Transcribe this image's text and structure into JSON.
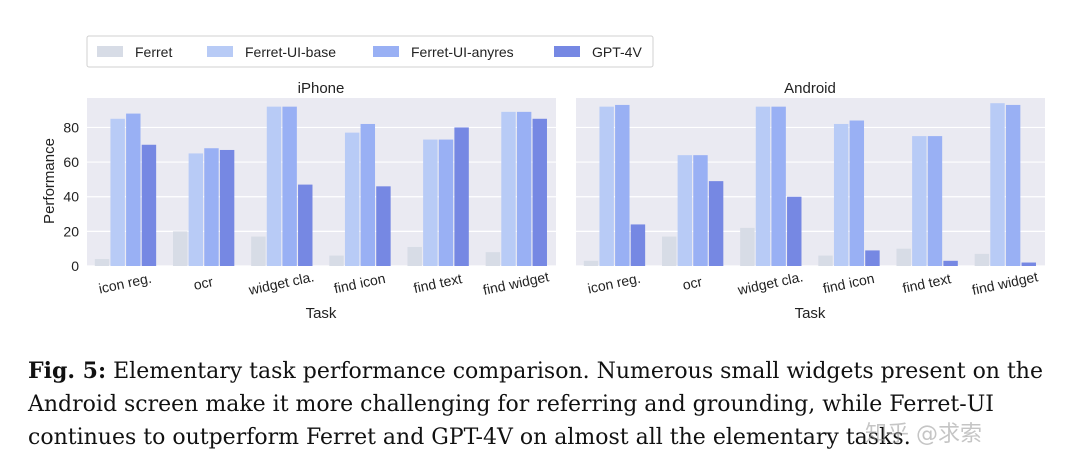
{
  "figure": {
    "chart_data": [
      {
        "type": "bar",
        "title": "iPhone",
        "xlabel": "Task",
        "ylabel": "Performance",
        "ylim": [
          0,
          97
        ],
        "yticks": [
          0,
          20,
          40,
          60,
          80
        ],
        "grid": true,
        "legend_position": "top-left",
        "categories": [
          "icon reg.",
          "ocr",
          "widget cla.",
          "find icon",
          "find text",
          "find widget"
        ],
        "series": [
          {
            "name": "Ferret",
            "color": "#d7dce6",
            "values": [
              4,
              20,
              17,
              6,
              11,
              8
            ]
          },
          {
            "name": "Ferret-UI-base",
            "color": "#b8cbf6",
            "values": [
              85,
              65,
              92,
              77,
              73,
              89
            ]
          },
          {
            "name": "Ferret-UI-anyres",
            "color": "#99b0f4",
            "values": [
              88,
              68,
              92,
              82,
              73,
              89
            ]
          },
          {
            "name": "GPT-4V",
            "color": "#7688e3",
            "values": [
              70,
              67,
              47,
              46,
              80,
              85
            ]
          }
        ]
      },
      {
        "type": "bar",
        "title": "Android",
        "xlabel": "Task",
        "ylabel": "",
        "ylim": [
          0,
          97
        ],
        "grid": true,
        "categories": [
          "icon reg.",
          "ocr",
          "widget cla.",
          "find icon",
          "find text",
          "find widget"
        ],
        "series": [
          {
            "name": "Ferret",
            "color": "#d7dce6",
            "values": [
              3,
              17,
              22,
              6,
              10,
              7
            ]
          },
          {
            "name": "Ferret-UI-base",
            "color": "#b8cbf6",
            "values": [
              92,
              64,
              92,
              82,
              75,
              94
            ]
          },
          {
            "name": "Ferret-UI-anyres",
            "color": "#99b0f4",
            "values": [
              93,
              64,
              92,
              84,
              75,
              93
            ]
          },
          {
            "name": "GPT-4V",
            "color": "#7688e3",
            "values": [
              24,
              49,
              40,
              9,
              3,
              2
            ]
          }
        ]
      }
    ],
    "legend_labels": [
      "Ferret",
      "Ferret-UI-base",
      "Ferret-UI-anyres",
      "GPT-4V"
    ]
  },
  "caption": {
    "label": "Fig. 5:",
    "text": " Elementary task performance comparison. Numerous small widgets present on the Android screen make it more challenging for referring and grounding, while Ferret-UI continues to outperform Ferret and GPT-4V on almost all the elementary tasks."
  },
  "watermark": "知乎 @求索"
}
